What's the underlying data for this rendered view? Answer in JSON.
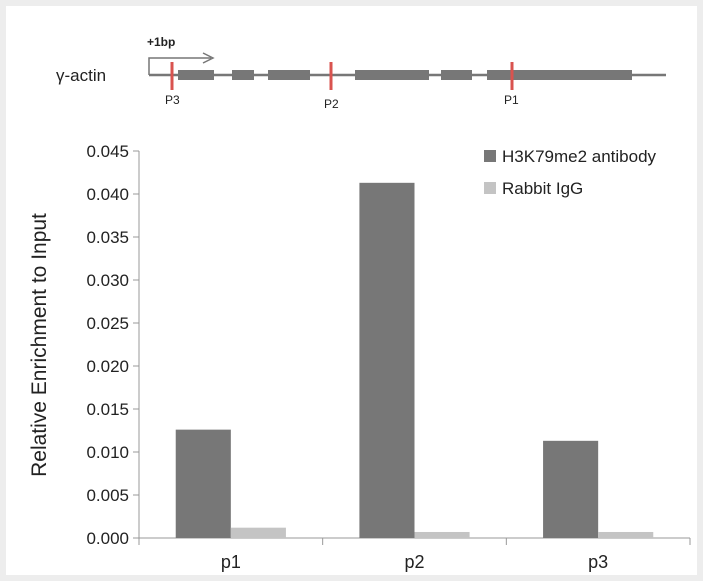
{
  "gene_diagram": {
    "gene_name": "γ-actin",
    "tss_label": "+1bp",
    "markers": [
      "P3",
      "P2",
      "P1"
    ],
    "colors": {
      "line": "#777777",
      "exon": "#777777",
      "marker": "#d9534f",
      "arrow": "#777777"
    }
  },
  "chart_data": {
    "type": "bar",
    "categories": [
      "p1",
      "p2",
      "p3"
    ],
    "series": [
      {
        "name": "H3K79me2 antibody",
        "values": [
          0.0126,
          0.0413,
          0.0113
        ],
        "color": "#777777"
      },
      {
        "name": "Rabbit IgG",
        "values": [
          0.0012,
          0.0007,
          0.0007
        ],
        "color": "#c4c4c4"
      }
    ],
    "ylabel": "Relative Enrichment to Input",
    "xlabel": "",
    "ylim": [
      0,
      0.045
    ],
    "yticks": [
      "0.000",
      "0.005",
      "0.010",
      "0.015",
      "0.020",
      "0.025",
      "0.030",
      "0.035",
      "0.040",
      "0.045"
    ],
    "grid": false,
    "legend_position": "top-right"
  }
}
